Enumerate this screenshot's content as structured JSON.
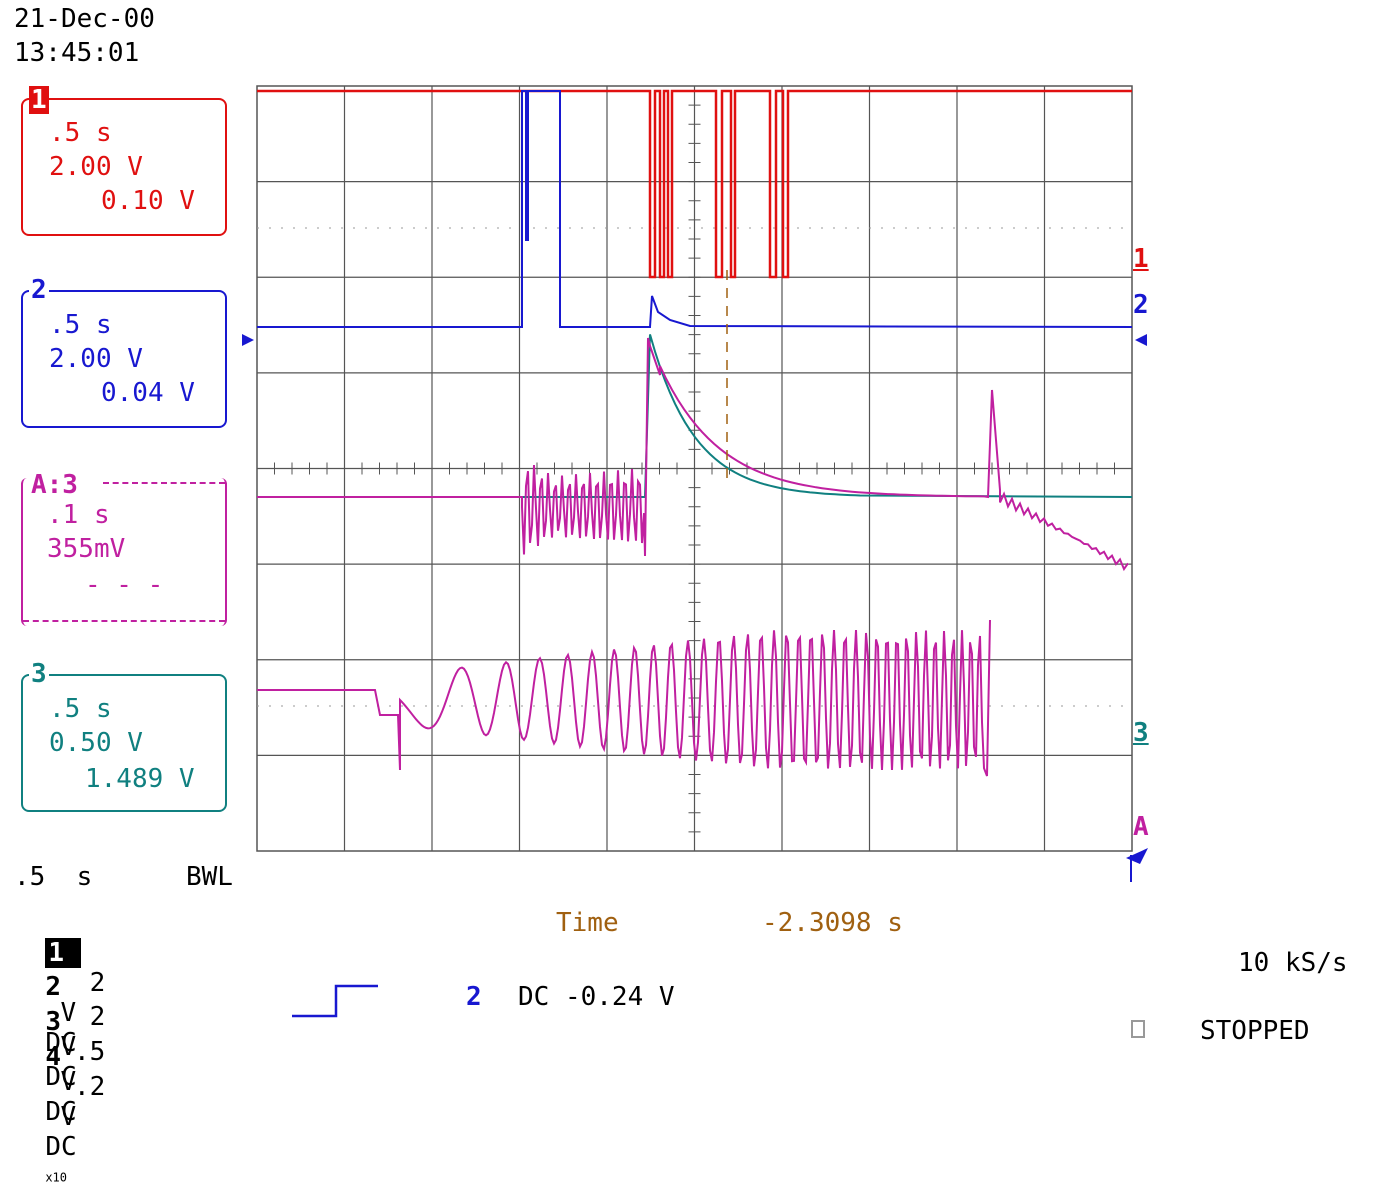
{
  "header": {
    "date": "21-Dec-00",
    "time": "13:45:01"
  },
  "colors": {
    "ch1": "#e01010",
    "ch2": "#1818d0",
    "ch3": "#108080",
    "chA": "#c020a0",
    "ch4": "#c020a0",
    "cursor": "#a06010",
    "grid": "#555555"
  },
  "panels": {
    "ch1": {
      "num": "1",
      "timebase": ".5 s",
      "volts": "2.00 V",
      "offset": "0.10 V"
    },
    "ch2": {
      "num": "2",
      "timebase": ".5 s",
      "volts": "2.00 V",
      "offset": "0.04 V"
    },
    "chA": {
      "num": "A:3",
      "timebase": ".1 s",
      "volts": "355mV",
      "offset": "- - -"
    },
    "ch3": {
      "num": "3",
      "timebase": ".5 s",
      "volts": "0.50 V",
      "offset": "1.489 V"
    }
  },
  "markers": {
    "right_1": "1",
    "right_2": "2",
    "right_3": "3",
    "right_A": "A"
  },
  "footer": {
    "timebase": ".5  s",
    "bwl": "BWL",
    "channels": [
      {
        "ch": "1",
        "volts": "2",
        "unit": "V",
        "coupling": "DC",
        "extra": ""
      },
      {
        "ch": "2",
        "volts": "2",
        "unit": "V",
        "coupling": "DC",
        "extra": ""
      },
      {
        "ch": "3",
        "volts": ".5",
        "unit": "V",
        "coupling": "DC",
        "extra": ""
      },
      {
        "ch": "4",
        "volts": ".2",
        "unit": "V",
        "coupling": "DC",
        "extra": "x10"
      }
    ],
    "cursor_label": "Time",
    "cursor_value": "-2.3098 s",
    "trigger_channel": "2",
    "trigger_text": "DC -0.24 V",
    "sample_rate": "10 kS/s",
    "status": "STOPPED"
  }
}
